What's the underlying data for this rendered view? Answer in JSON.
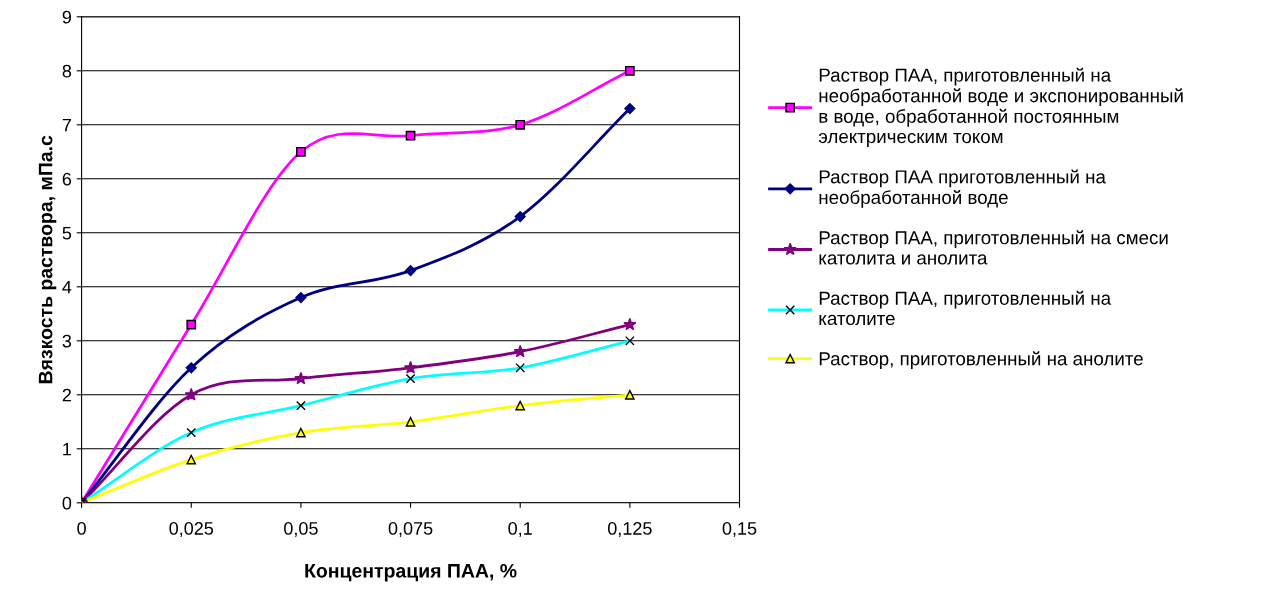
{
  "chart_data": {
    "type": "line",
    "xlabel": "Концентрация ПАА, %",
    "ylabel": "Вязкость раствора, мПа.с",
    "x": [
      0,
      0.025,
      0.05,
      0.075,
      0.1,
      0.125
    ],
    "series": [
      {
        "name": "Раствор ПАА, приготовленный на\nнеобработанной воде и экспонированный\nв воде, обработанной постоянным\nэлектрическим током",
        "color": "#ff00ff",
        "marker": "square",
        "values": [
          0,
          3.3,
          6.5,
          6.8,
          7.0,
          8.0
        ]
      },
      {
        "name": "Раствор ПАА приготовленный на\nнеобработанной воде",
        "color": "#000080",
        "marker": "diamond",
        "values": [
          0,
          2.5,
          3.8,
          4.3,
          5.3,
          7.3
        ]
      },
      {
        "name": "Раствор ПАА, приготовленный на смеси\nкатолита и анолита",
        "color": "#800080",
        "marker": "star",
        "values": [
          0,
          2.0,
          2.3,
          2.5,
          2.8,
          3.3
        ]
      },
      {
        "name": "Раствор ПАА, приготовленный на\nкатолите",
        "color": "#00ffff",
        "marker": "cross",
        "values": [
          0,
          1.3,
          1.8,
          2.3,
          2.5,
          3.0
        ]
      },
      {
        "name": "Раствор, приготовленный на анолите",
        "color": "#ffff00",
        "marker": "triangle",
        "values": [
          0,
          0.8,
          1.3,
          1.5,
          1.8,
          2.0
        ]
      }
    ],
    "xlim": [
      0,
      0.15
    ],
    "xticks": [
      0,
      {
        "value": 0.025,
        "label": "0,025"
      },
      {
        "value": 0.05,
        "label": "0,05"
      },
      {
        "value": 0.075,
        "label": "0,075"
      },
      {
        "value": 0.1,
        "label": "0,1"
      },
      {
        "value": 0.125,
        "label": "0,125"
      },
      {
        "value": 0.15,
        "label": "0,15"
      }
    ],
    "ylim": [
      0,
      9
    ],
    "yticks": [
      0,
      1,
      2,
      3,
      4,
      5,
      6,
      7,
      8,
      9
    ],
    "grid": "y",
    "legend": "right"
  }
}
